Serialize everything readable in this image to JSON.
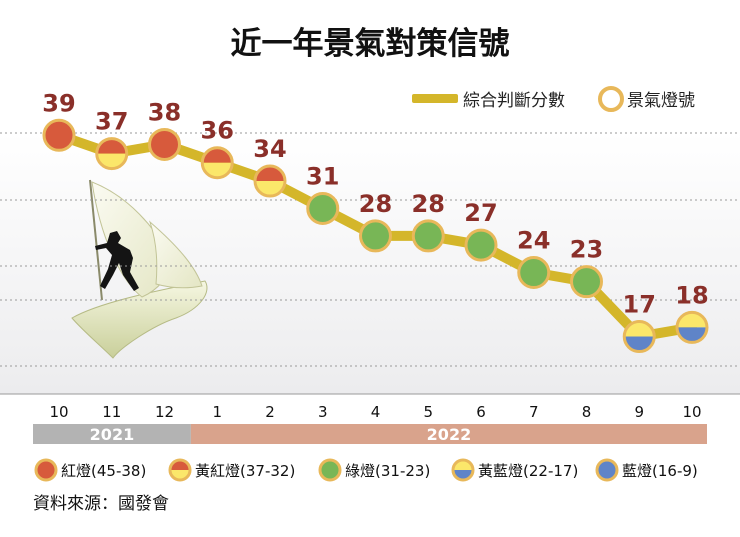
{
  "chart_data": {
    "type": "line",
    "title": "近一年景氣對策信號",
    "legend": {
      "line_label": "綜合判斷分數",
      "marker_label": "景氣燈號",
      "position": "top-right"
    },
    "categories": [
      "10",
      "11",
      "12",
      "1",
      "2",
      "3",
      "4",
      "5",
      "6",
      "7",
      "8",
      "9",
      "10"
    ],
    "series": [
      {
        "name": "綜合判斷分數",
        "values": [
          39,
          37,
          38,
          36,
          34,
          31,
          28,
          28,
          27,
          24,
          23,
          17,
          18
        ],
        "value_labels": [
          "39",
          "37",
          "38",
          "36",
          "34",
          "31",
          "28",
          "28",
          "27",
          "24",
          "23",
          "17",
          "18"
        ],
        "signals": [
          "red",
          "yellow-red",
          "red",
          "yellow-red",
          "yellow-red",
          "green",
          "green",
          "green",
          "green",
          "green",
          "green",
          "yellow-blue",
          "yellow-blue"
        ]
      }
    ],
    "years": [
      {
        "label": "2021",
        "start_index": 0,
        "end_index": 2,
        "color": "#b3b3b3"
      },
      {
        "label": "2022",
        "start_index": 3,
        "end_index": 12,
        "color": "#d9a38c"
      }
    ],
    "signal_key": [
      {
        "type": "red",
        "label": "紅燈(45-38)"
      },
      {
        "type": "yellow-red",
        "label": "黃紅燈(37-32)"
      },
      {
        "type": "green",
        "label": "綠燈(31-23)"
      },
      {
        "type": "yellow-blue",
        "label": "黃藍燈(22-17)"
      },
      {
        "type": "blue",
        "label": "藍燈(16-9)"
      }
    ],
    "colors": {
      "line": "#d4b62a",
      "red": "#d75a3c",
      "yellow": "#fbe76a",
      "green": "#78b656",
      "blue": "#5f84c8",
      "ring": "#e8b85a",
      "value_label": "#8a2f29"
    },
    "grid": true,
    "ylim": [
      14,
      41
    ]
  },
  "source": "資料來源：國發會"
}
